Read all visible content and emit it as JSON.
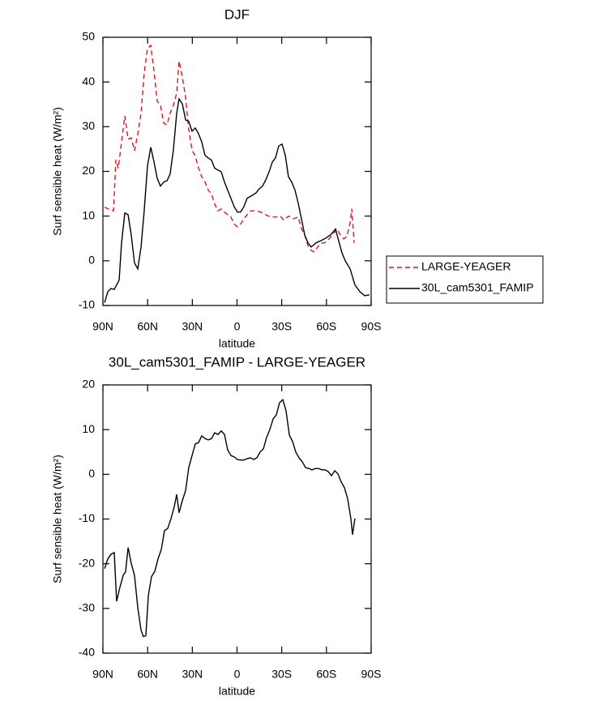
{
  "chart_data": [
    {
      "type": "line",
      "title": "DJF",
      "xlabel": "latitude",
      "ylabel": "Surf sensible heat (W/m²)",
      "xlim": [
        90,
        -90
      ],
      "xticks": [
        {
          "value": 90,
          "label": "90N"
        },
        {
          "value": 60,
          "label": "60N"
        },
        {
          "value": 30,
          "label": "30N"
        },
        0,
        {
          "value": -30,
          "label": "30S"
        },
        {
          "value": -60,
          "label": "60S"
        },
        {
          "value": -90,
          "label": "90S"
        }
      ],
      "ylim": [
        -10,
        50
      ],
      "yticks": [
        -10,
        0,
        10,
        20,
        30,
        40,
        50
      ],
      "legend": "right",
      "series": [
        {
          "name": "LARGE-YEAGER",
          "color": "#e0141e",
          "line_style": "dashed",
          "x": [
            88.9,
            85.1,
            82.9,
            81.3,
            79.7,
            77.5,
            75.3,
            73.1,
            71.0,
            68.8,
            66.6,
            64.4,
            62.3,
            60.1,
            57.9,
            55.7,
            53.6,
            51.4,
            49.2,
            47.0,
            44.9,
            42.7,
            40.5,
            38.9,
            36.7,
            34.5,
            32.4,
            30.2,
            28.0,
            25.8,
            23.7,
            21.5,
            19.3,
            17.1,
            15.0,
            12.8,
            10.6,
            8.4,
            6.3,
            4.1,
            1.9,
            -0.3,
            -2.4,
            -4.6,
            -6.8,
            -9.5,
            -12.8,
            -16.0,
            -19.3,
            -22.6,
            -25.8,
            -29.1,
            -31.3,
            -34.5,
            -37.8,
            -41.0,
            -43.2,
            -45.4,
            -47.6,
            -49.8,
            -51.9,
            -54.1,
            -56.3,
            -58.5,
            -60.7,
            -62.8,
            -65.0,
            -67.2,
            -69.3,
            -71.5,
            -73.7,
            -75.9,
            -77.0,
            -78.6
          ],
          "values": [
            12,
            11.4,
            11.2,
            22.6,
            20.7,
            26.6,
            32.4,
            27.2,
            27.5,
            24.6,
            28.4,
            33.0,
            42.0,
            47.5,
            48.2,
            42.4,
            35.7,
            34.8,
            30.8,
            30.4,
            33.0,
            34.8,
            37.5,
            44.7,
            41.1,
            36.6,
            29.3,
            24.8,
            23.4,
            20.7,
            18.8,
            17.6,
            15.8,
            14.9,
            12.7,
            11.2,
            11.6,
            10.9,
            10.3,
            9.8,
            8.2,
            7.6,
            8.2,
            9.4,
            10.3,
            11.2,
            11.2,
            10.9,
            10.3,
            9.8,
            9.8,
            10.0,
            9.1,
            10.0,
            9.4,
            9.8,
            7.2,
            5.8,
            3.4,
            2.3,
            2.0,
            3.1,
            4.0,
            4.0,
            4.5,
            5.3,
            6.2,
            7.1,
            5.8,
            4.9,
            5.4,
            8.5,
            11.6,
            4.0
          ]
        },
        {
          "name": "30L_cam5301_FAMIP",
          "color": "#000000",
          "line_style": "solid",
          "x": [
            88.9,
            86.7,
            84.6,
            82.4,
            79.1,
            77.5,
            75.3,
            73.1,
            71.0,
            68.8,
            66.6,
            64.4,
            62.3,
            60.1,
            57.9,
            55.7,
            53.6,
            51.4,
            49.2,
            47.0,
            44.9,
            42.7,
            40.5,
            38.9,
            36.7,
            34.5,
            32.4,
            30.2,
            28.0,
            25.8,
            23.7,
            21.5,
            19.3,
            17.1,
            15.0,
            12.8,
            10.6,
            8.4,
            6.3,
            4.1,
            1.9,
            -0.3,
            -2.4,
            -4.6,
            -6.8,
            -9.5,
            -12.8,
            -14.9,
            -17.1,
            -19.3,
            -21.5,
            -23.7,
            -25.8,
            -28.0,
            -30.2,
            -32.4,
            -34.5,
            -36.7,
            -38.9,
            -41.0,
            -43.2,
            -45.4,
            -47.6,
            -49.8,
            -53.0,
            -56.3,
            -59.6,
            -62.8,
            -66.1,
            -68.2,
            -70.4,
            -72.6,
            -75.9,
            -79.1,
            -82.4,
            -85.6,
            -88.9
          ],
          "values": [
            -9.4,
            -6.9,
            -6.2,
            -6.4,
            -4.3,
            4.0,
            10.7,
            10.3,
            5.8,
            -0.5,
            -1.8,
            3.1,
            11.2,
            21.2,
            25.4,
            22.1,
            18.5,
            16.7,
            17.6,
            17.9,
            19.4,
            24.8,
            33.0,
            36.2,
            35.1,
            31.5,
            31.2,
            29.0,
            29.7,
            28.4,
            26.6,
            23.6,
            23.0,
            22.5,
            20.7,
            20.3,
            19.9,
            17.6,
            15.8,
            14.0,
            12.1,
            10.9,
            10.9,
            12.1,
            14.0,
            14.5,
            15.2,
            16.1,
            16.7,
            18.1,
            19.9,
            22.1,
            23.0,
            25.7,
            26.1,
            23.6,
            18.8,
            17.6,
            15.8,
            13.0,
            9.4,
            5.8,
            4.0,
            3.1,
            4.0,
            4.5,
            5.1,
            5.8,
            7.1,
            4.5,
            1.8,
            0.0,
            -1.8,
            -5.4,
            -6.9,
            -7.8,
            -7.6
          ]
        }
      ]
    },
    {
      "type": "line",
      "title": "30L_cam5301_FAMIP - LARGE-YEAGER",
      "xlabel": "latitude",
      "ylabel": "Surf sensible heat (W/m²)",
      "xlim": [
        90,
        -90
      ],
      "xticks": [
        {
          "value": 90,
          "label": "90N"
        },
        {
          "value": 60,
          "label": "60N"
        },
        {
          "value": 30,
          "label": "30N"
        },
        0,
        {
          "value": -30,
          "label": "30S"
        },
        {
          "value": -60,
          "label": "60S"
        },
        {
          "value": -90,
          "label": "90S"
        }
      ],
      "ylim": [
        -40,
        20
      ],
      "yticks": [
        -40,
        -30,
        -20,
        -10,
        0,
        10,
        20
      ],
      "color": "#000000",
      "x": [
        88.9,
        86.7,
        84.6,
        82.4,
        80.8,
        78.6,
        76.4,
        74.8,
        73.1,
        71.0,
        68.8,
        66.6,
        64.4,
        62.8,
        61.2,
        59.5,
        57.4,
        55.2,
        53.0,
        50.8,
        48.7,
        46.5,
        44.3,
        42.1,
        40.5,
        38.9,
        36.7,
        34.5,
        32.4,
        30.2,
        28.0,
        25.8,
        23.7,
        21.5,
        19.3,
        17.1,
        15.0,
        12.8,
        10.6,
        8.4,
        6.3,
        4.1,
        1.9,
        -0.3,
        -2.4,
        -4.6,
        -6.8,
        -9.0,
        -11.1,
        -13.3,
        -15.5,
        -17.7,
        -19.8,
        -22.0,
        -24.2,
        -26.4,
        -28.5,
        -30.7,
        -32.9,
        -35.1,
        -37.3,
        -39.4,
        -41.6,
        -43.8,
        -46.0,
        -48.2,
        -50.3,
        -52.5,
        -54.7,
        -56.9,
        -59.0,
        -61.2,
        -63.4,
        -65.6,
        -67.7,
        -69.9,
        -72.1,
        -74.2,
        -76.4,
        -77.5,
        -79.1
      ],
      "values": [
        -21.1,
        -18.9,
        -17.9,
        -17.5,
        -28.4,
        -25.3,
        -22.6,
        -21.8,
        -16.4,
        -19.9,
        -22.6,
        -29.8,
        -34.9,
        -36.3,
        -36.1,
        -27.1,
        -22.9,
        -21.7,
        -18.9,
        -16.8,
        -12.6,
        -12.1,
        -9.9,
        -7.2,
        -4.5,
        -8.6,
        -5.9,
        -3.6,
        1.5,
        4.2,
        6.8,
        7.1,
        8.6,
        8.0,
        7.7,
        8.0,
        9.3,
        8.9,
        9.7,
        8.9,
        5.5,
        4.2,
        3.9,
        3.3,
        3.2,
        3.2,
        3.5,
        3.7,
        3.3,
        3.7,
        5.0,
        5.7,
        8.2,
        10.0,
        12.4,
        13.3,
        16.0,
        16.7,
        14.2,
        8.8,
        7.3,
        5.0,
        3.7,
        2.8,
        1.5,
        1.3,
        1.0,
        1.3,
        1.3,
        1.0,
        1.0,
        0.6,
        -0.3,
        0.8,
        0.1,
        -1.7,
        -3.0,
        -5.4,
        -9.9,
        -13.5,
        -9.9
      ]
    }
  ]
}
